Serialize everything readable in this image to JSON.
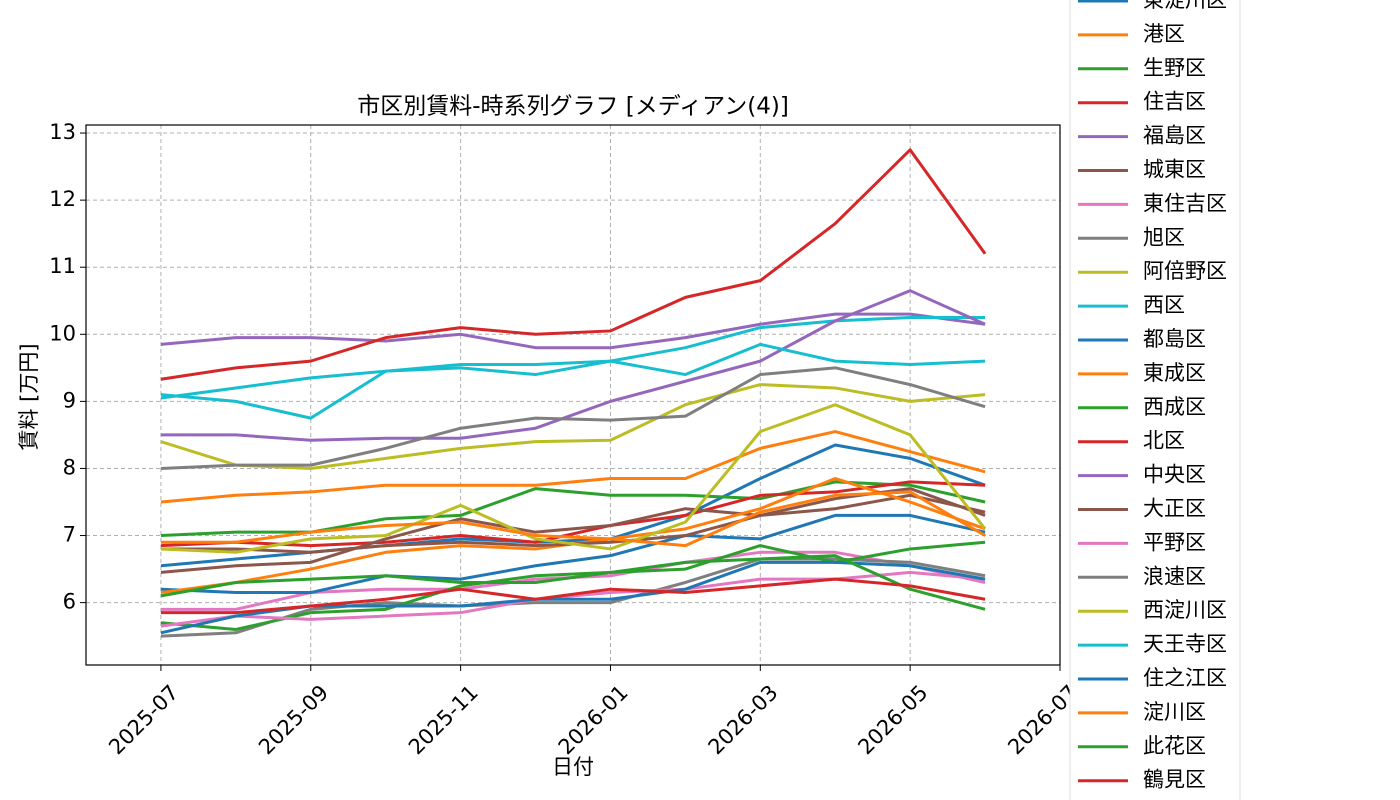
{
  "chart_data": {
    "type": "line",
    "title": "市区別賃料-時系列グラフ [メディアン(4)]",
    "x_label": "日付",
    "y_label": "賃料 [万円]",
    "x": [
      "2025-07",
      "2025-08",
      "2025-09",
      "2025-10",
      "2025-11",
      "2025-12",
      "2026-01",
      "2026-02",
      "2026-03",
      "2026-04",
      "2026-05",
      "2026-06"
    ],
    "xlim": [
      "2025-06",
      "2026-07"
    ],
    "xticks": [
      "2025-07",
      "2025-09",
      "2025-11",
      "2026-01",
      "2026-03",
      "2026-05",
      "2026-07"
    ],
    "ylim": [
      5.07,
      13.12
    ],
    "yticks": [
      6,
      7,
      8,
      9,
      10,
      11,
      12,
      13
    ],
    "grid": true,
    "series": [
      {
        "name": "東淀川区",
        "color": "#1f77b4",
        "values": [
          6.55,
          6.65,
          6.75,
          6.85,
          6.95,
          6.9,
          6.95,
          7.3,
          7.85,
          8.35,
          8.15,
          7.75
        ]
      },
      {
        "name": "港区",
        "color": "#ff7f0e",
        "values": [
          7.5,
          7.6,
          7.65,
          7.75,
          7.75,
          7.75,
          7.85,
          7.85,
          8.3,
          8.55,
          8.25,
          7.95
        ]
      },
      {
        "name": "生野区",
        "color": "#2ca02c",
        "values": [
          7.0,
          7.05,
          7.05,
          7.25,
          7.3,
          7.7,
          7.6,
          7.6,
          7.55,
          7.8,
          7.75,
          7.5
        ]
      },
      {
        "name": "住吉区",
        "color": "#d62728",
        "values": [
          6.85,
          6.9,
          6.85,
          6.9,
          7.0,
          6.9,
          7.15,
          7.3,
          7.6,
          7.65,
          7.8,
          7.75
        ]
      },
      {
        "name": "福島区",
        "color": "#9467bd",
        "values": [
          9.85,
          9.95,
          9.95,
          9.9,
          10.0,
          9.8,
          9.8,
          9.95,
          10.15,
          10.3,
          10.3,
          10.15
        ]
      },
      {
        "name": "城東区",
        "color": "#8c564b",
        "values": [
          6.45,
          6.55,
          6.6,
          6.95,
          7.25,
          7.05,
          7.15,
          7.4,
          7.3,
          7.4,
          7.6,
          7.35
        ]
      },
      {
        "name": "東住吉区",
        "color": "#e377c2",
        "values": [
          5.9,
          5.9,
          6.15,
          6.2,
          6.2,
          6.35,
          6.4,
          6.6,
          6.75,
          6.75,
          6.55,
          6.3
        ]
      },
      {
        "name": "旭区",
        "color": "#7f7f7f",
        "values": [
          5.5,
          5.55,
          5.9,
          6.0,
          5.95,
          6.0,
          6.0,
          6.3,
          6.65,
          6.65,
          6.6,
          6.4
        ]
      },
      {
        "name": "阿倍野区",
        "color": "#bcbd22",
        "values": [
          8.4,
          8.05,
          8.0,
          8.15,
          8.3,
          8.4,
          8.42,
          8.95,
          9.25,
          9.2,
          9.0,
          9.1
        ]
      },
      {
        "name": "西区",
        "color": "#17becf",
        "values": [
          9.1,
          9.0,
          8.75,
          9.45,
          9.55,
          9.55,
          9.6,
          9.8,
          10.1,
          10.2,
          10.25,
          10.25
        ]
      },
      {
        "name": "都島区",
        "color": "#1f77b4",
        "values": [
          6.2,
          6.15,
          6.15,
          6.4,
          6.35,
          6.55,
          6.7,
          7.0,
          6.95,
          7.3,
          7.3,
          7.05
        ]
      },
      {
        "name": "東成区",
        "color": "#ff7f0e",
        "values": [
          6.15,
          6.3,
          6.5,
          6.75,
          6.85,
          6.8,
          6.95,
          7.1,
          7.4,
          7.85,
          7.5,
          7.1
        ]
      },
      {
        "name": "西成区",
        "color": "#2ca02c",
        "values": [
          5.7,
          5.6,
          5.85,
          5.9,
          6.25,
          6.4,
          6.45,
          6.5,
          6.85,
          6.6,
          6.8,
          6.9
        ]
      },
      {
        "name": "北区",
        "color": "#d62728",
        "values": [
          9.33,
          9.5,
          9.6,
          9.95,
          10.1,
          10.0,
          10.05,
          10.55,
          10.8,
          11.65,
          12.75,
          11.2
        ]
      },
      {
        "name": "中央区",
        "color": "#9467bd",
        "values": [
          8.5,
          8.5,
          8.42,
          8.45,
          8.45,
          8.6,
          9.0,
          9.3,
          9.6,
          10.2,
          10.65,
          10.15
        ]
      },
      {
        "name": "大正区",
        "color": "#8c564b",
        "values": [
          6.8,
          6.8,
          6.75,
          6.85,
          6.9,
          6.85,
          6.9,
          7.0,
          7.3,
          7.55,
          7.7,
          7.3
        ]
      },
      {
        "name": "平野区",
        "color": "#e377c2",
        "values": [
          5.65,
          5.8,
          5.75,
          5.8,
          5.85,
          6.05,
          6.15,
          6.2,
          6.35,
          6.35,
          6.45,
          6.35
        ]
      },
      {
        "name": "浪速区",
        "color": "#7f7f7f",
        "values": [
          8.0,
          8.05,
          8.05,
          8.3,
          8.6,
          8.75,
          8.72,
          8.78,
          9.4,
          9.5,
          9.25,
          8.92
        ]
      },
      {
        "name": "西淀川区",
        "color": "#bcbd22",
        "values": [
          6.8,
          6.75,
          6.95,
          7.0,
          7.45,
          6.95,
          6.8,
          7.2,
          8.55,
          8.95,
          8.5,
          7.1
        ]
      },
      {
        "name": "天王寺区",
        "color": "#17becf",
        "values": [
          9.05,
          9.2,
          9.35,
          9.45,
          9.5,
          9.4,
          9.6,
          9.4,
          9.85,
          9.6,
          9.55,
          9.6
        ]
      },
      {
        "name": "住之江区",
        "color": "#1f77b4",
        "values": [
          5.55,
          5.8,
          5.95,
          5.95,
          5.95,
          6.05,
          6.05,
          6.2,
          6.6,
          6.6,
          6.55,
          6.35
        ]
      },
      {
        "name": "淀川区",
        "color": "#ff7f0e",
        "values": [
          6.9,
          6.9,
          7.05,
          7.15,
          7.2,
          7.0,
          6.95,
          6.85,
          7.35,
          7.6,
          7.65,
          7.0
        ]
      },
      {
        "name": "此花区",
        "color": "#2ca02c",
        "values": [
          6.1,
          6.3,
          6.35,
          6.4,
          6.3,
          6.3,
          6.45,
          6.6,
          6.65,
          6.7,
          6.2,
          5.9
        ]
      },
      {
        "name": "鶴見区",
        "color": "#d62728",
        "values": [
          5.85,
          5.85,
          5.95,
          6.05,
          6.2,
          6.05,
          6.2,
          6.15,
          6.25,
          6.35,
          6.25,
          6.05
        ]
      }
    ]
  }
}
